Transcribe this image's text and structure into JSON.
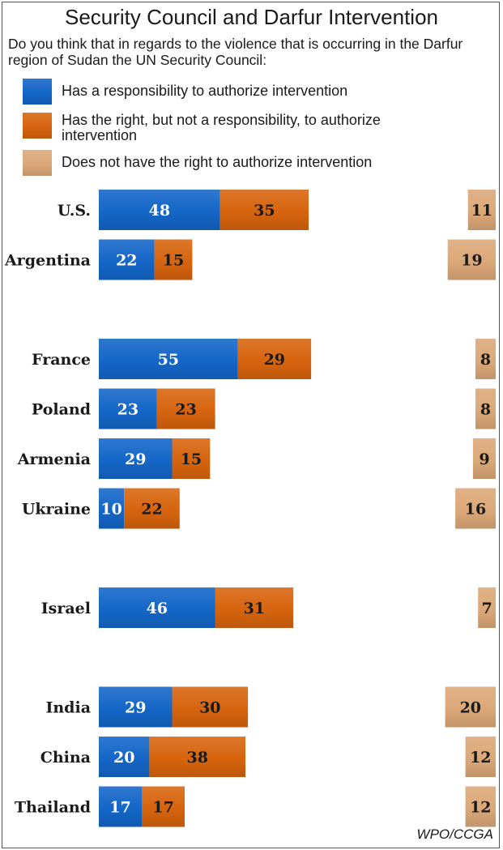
{
  "chart_data": {
    "type": "bar",
    "title": "Security Council and Darfur Intervention",
    "subtitle": "Do you think that in regards to the violence that is occurring in the Darfur region of Sudan the UN Security Council:",
    "categories": [
      "U.S.",
      "Argentina",
      "France",
      "Poland",
      "Armenia",
      "Ukraine",
      "Israel",
      "India",
      "China",
      "Thailand"
    ],
    "groups": [
      [
        "U.S.",
        "Argentina"
      ],
      [
        "France",
        "Poland",
        "Armenia",
        "Ukraine"
      ],
      [
        "Israel"
      ],
      [
        "India",
        "China",
        "Thailand"
      ]
    ],
    "series": [
      {
        "name": "Has a responsibility to authorize intervention",
        "values": [
          48,
          22,
          55,
          23,
          29,
          10,
          46,
          29,
          20,
          17
        ],
        "color": "#1466c8",
        "stacked": true
      },
      {
        "name": "Has the right, but not a responsibility, to authorize intervention",
        "values": [
          35,
          15,
          29,
          23,
          15,
          22,
          31,
          30,
          38,
          17
        ],
        "color": "#d7640e",
        "stacked": true
      },
      {
        "name": "Does not have the right to authorize intervention",
        "values": [
          11,
          19,
          8,
          8,
          9,
          16,
          7,
          20,
          12,
          12
        ],
        "color": "#dca878",
        "stacked": false,
        "align": "right"
      }
    ],
    "legend_position": "top",
    "grid": false,
    "source": "WPO/CCGA"
  }
}
